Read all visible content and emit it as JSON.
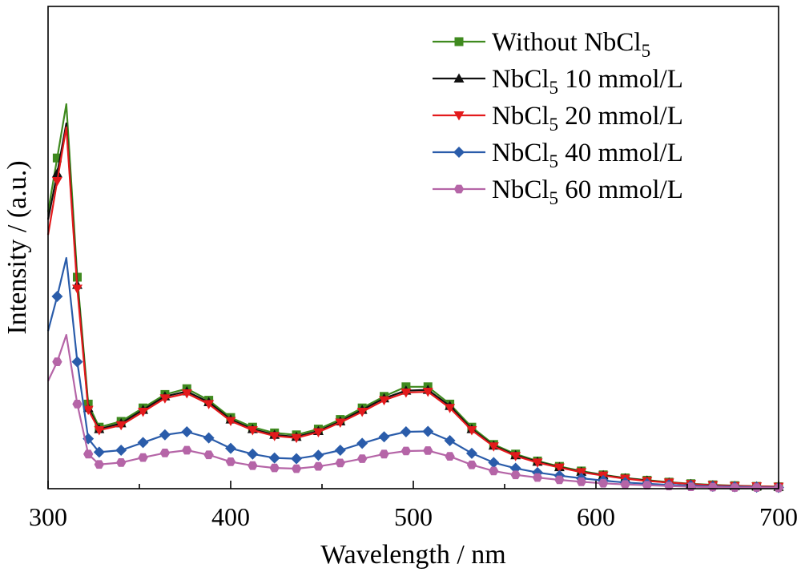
{
  "chart_data": {
    "type": "line",
    "xlabel": "Wavelength / nm",
    "ylabel": "Intensity / (a.u.)",
    "xlim": [
      300,
      700
    ],
    "ylim": [
      0,
      1.0
    ],
    "xticks": [
      300,
      400,
      500,
      600,
      700
    ],
    "yticks_labeled": false,
    "grid": false,
    "legend_position": "top-right",
    "x": [
      300,
      305,
      310,
      316,
      322,
      328,
      340,
      352,
      364,
      376,
      388,
      400,
      412,
      424,
      436,
      448,
      460,
      472,
      484,
      496,
      508,
      520,
      532,
      544,
      556,
      568,
      580,
      592,
      604,
      616,
      628,
      640,
      652,
      664,
      676,
      688,
      700
    ],
    "series": [
      {
        "name_main": "Without NbCl",
        "name_sub": "5",
        "name_rest": "",
        "color": "#3f8a1f",
        "marker": "square",
        "values": [
          0.72,
          0.86,
          1.0,
          0.55,
          0.22,
          0.16,
          0.175,
          0.21,
          0.245,
          0.26,
          0.23,
          0.185,
          0.16,
          0.145,
          0.14,
          0.155,
          0.18,
          0.21,
          0.24,
          0.265,
          0.265,
          0.22,
          0.16,
          0.115,
          0.09,
          0.072,
          0.058,
          0.046,
          0.036,
          0.028,
          0.022,
          0.017,
          0.013,
          0.01,
          0.008,
          0.006,
          0.005
        ]
      },
      {
        "name_main": "NbCl",
        "name_sub": "5",
        "name_rest": " 10 mmol/L",
        "color": "#111111",
        "marker": "triangle-up",
        "values": [
          0.7,
          0.82,
          0.95,
          0.53,
          0.21,
          0.155,
          0.17,
          0.205,
          0.24,
          0.253,
          0.225,
          0.18,
          0.155,
          0.14,
          0.135,
          0.15,
          0.175,
          0.205,
          0.235,
          0.255,
          0.257,
          0.215,
          0.155,
          0.112,
          0.087,
          0.07,
          0.056,
          0.044,
          0.035,
          0.027,
          0.021,
          0.016,
          0.012,
          0.009,
          0.007,
          0.006,
          0.005
        ]
      },
      {
        "name_main": "NbCl",
        "name_sub": "5",
        "name_rest": " 20 mmol/L",
        "color": "#e31a1c",
        "marker": "triangle-down",
        "values": [
          0.66,
          0.8,
          0.94,
          0.52,
          0.205,
          0.152,
          0.165,
          0.2,
          0.235,
          0.248,
          0.22,
          0.176,
          0.152,
          0.137,
          0.132,
          0.147,
          0.172,
          0.2,
          0.23,
          0.25,
          0.252,
          0.21,
          0.152,
          0.11,
          0.085,
          0.068,
          0.055,
          0.043,
          0.034,
          0.026,
          0.02,
          0.016,
          0.012,
          0.009,
          0.007,
          0.006,
          0.005
        ]
      },
      {
        "name_main": "NbCl",
        "name_sub": "5",
        "name_rest": " 40 mmol/L",
        "color": "#2a5caa",
        "marker": "diamond",
        "values": [
          0.41,
          0.5,
          0.6,
          0.33,
          0.13,
          0.095,
          0.1,
          0.12,
          0.14,
          0.148,
          0.132,
          0.105,
          0.09,
          0.08,
          0.078,
          0.087,
          0.1,
          0.118,
          0.135,
          0.148,
          0.149,
          0.125,
          0.092,
          0.068,
          0.053,
          0.042,
          0.034,
          0.027,
          0.021,
          0.016,
          0.013,
          0.01,
          0.008,
          0.006,
          0.005,
          0.004,
          0.003
        ]
      },
      {
        "name_main": "NbCl",
        "name_sub": "5",
        "name_rest": " 60 mmol/L",
        "color": "#b565a7",
        "marker": "hexagon",
        "values": [
          0.28,
          0.33,
          0.4,
          0.22,
          0.09,
          0.063,
          0.068,
          0.081,
          0.093,
          0.1,
          0.088,
          0.07,
          0.06,
          0.054,
          0.052,
          0.058,
          0.067,
          0.078,
          0.09,
          0.098,
          0.099,
          0.084,
          0.062,
          0.046,
          0.036,
          0.029,
          0.023,
          0.018,
          0.014,
          0.011,
          0.009,
          0.007,
          0.005,
          0.004,
          0.003,
          0.003,
          0.002
        ]
      }
    ]
  }
}
